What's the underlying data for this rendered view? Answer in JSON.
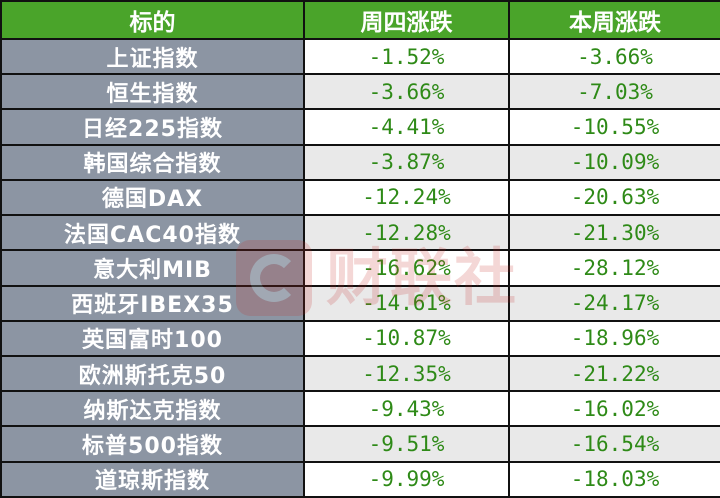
{
  "table": {
    "headers": [
      "标的",
      "周四涨跌",
      "本周涨跌"
    ],
    "rows": [
      {
        "name": "上证指数",
        "thursday": "-1.52%",
        "week": "-3.66%"
      },
      {
        "name": "恒生指数",
        "thursday": "-3.66%",
        "week": "-7.03%"
      },
      {
        "name": "日经225指数",
        "thursday": "-4.41%",
        "week": "-10.55%"
      },
      {
        "name": "韩国综合指数",
        "thursday": "-3.87%",
        "week": "-10.09%"
      },
      {
        "name": "德国DAX",
        "thursday": "-12.24%",
        "week": "-20.63%"
      },
      {
        "name": "法国CAC40指数",
        "thursday": "-12.28%",
        "week": "-21.30%"
      },
      {
        "name": "意大利MIB",
        "thursday": "-16.62%",
        "week": "-28.12%"
      },
      {
        "name": "西班牙IBEX35",
        "thursday": "-14.61%",
        "week": "-24.17%"
      },
      {
        "name": "英国富时100",
        "thursday": "-10.87%",
        "week": "-18.96%"
      },
      {
        "name": "欧洲斯托克50",
        "thursday": "-12.35%",
        "week": "-21.22%"
      },
      {
        "name": "纳斯达克指数",
        "thursday": "-9.43%",
        "week": "-16.02%"
      },
      {
        "name": "标普500指数",
        "thursday": "-9.51%",
        "week": "-16.54%"
      },
      {
        "name": "道琼斯指数",
        "thursday": "-9.99%",
        "week": "-18.03%"
      }
    ]
  },
  "watermark": {
    "text": "财联社",
    "icon": "cailianshe-logo-icon"
  },
  "colors": {
    "header_bg": "#4aa42a",
    "name_col_bg": "#8c95a3",
    "value_text": "#2e8a17",
    "alt_row_bg": "#e9e9e9"
  }
}
